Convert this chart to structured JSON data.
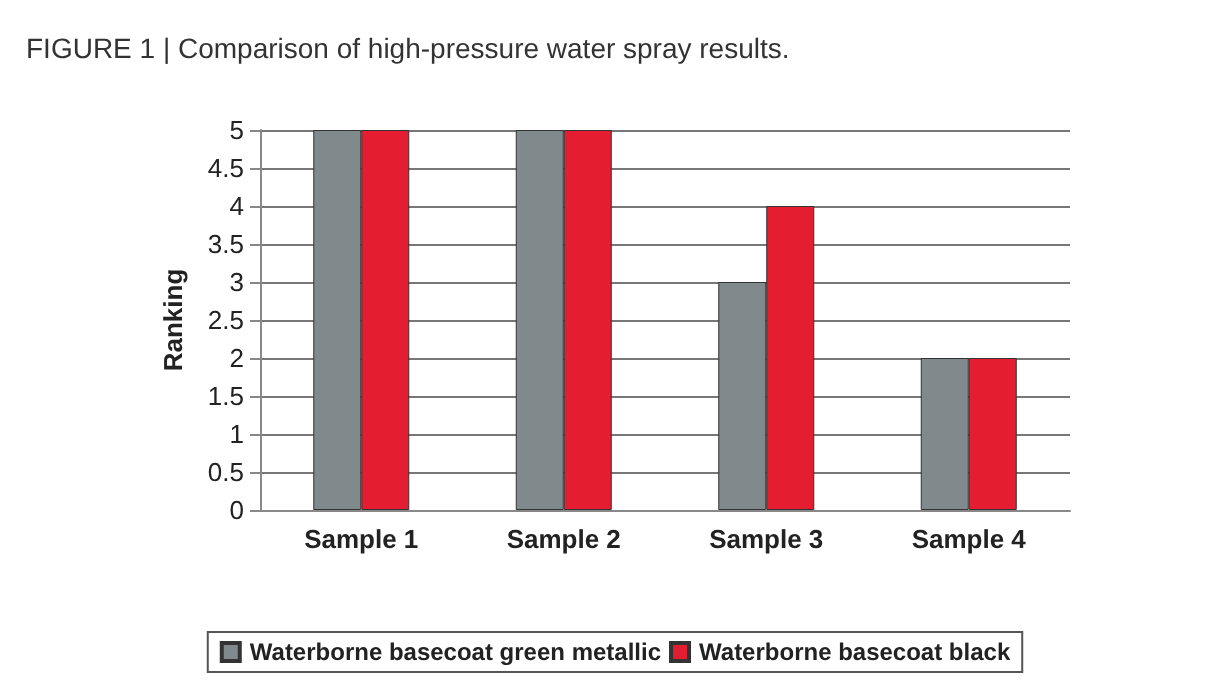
{
  "chart_data": {
    "type": "bar",
    "title": "FIGURE 1 | Comparison of high-pressure water spray results.",
    "ylabel": "Ranking",
    "categories": [
      "Sample 1",
      "Sample 2",
      "Sample 3",
      "Sample 4"
    ],
    "series": [
      {
        "name": "Waterborne basecoat green metallic",
        "color": "#808a8c",
        "values": [
          5,
          5,
          3,
          2
        ]
      },
      {
        "name": "Waterborne basecoat black",
        "color": "#e41e30",
        "values": [
          5,
          5,
          4,
          2
        ]
      }
    ],
    "ylim": [
      0,
      5
    ],
    "yticks": [
      0,
      0.5,
      1,
      1.5,
      2,
      2.5,
      3,
      3.5,
      4,
      4.5,
      5
    ],
    "grid": "y",
    "legend": "bottom"
  }
}
